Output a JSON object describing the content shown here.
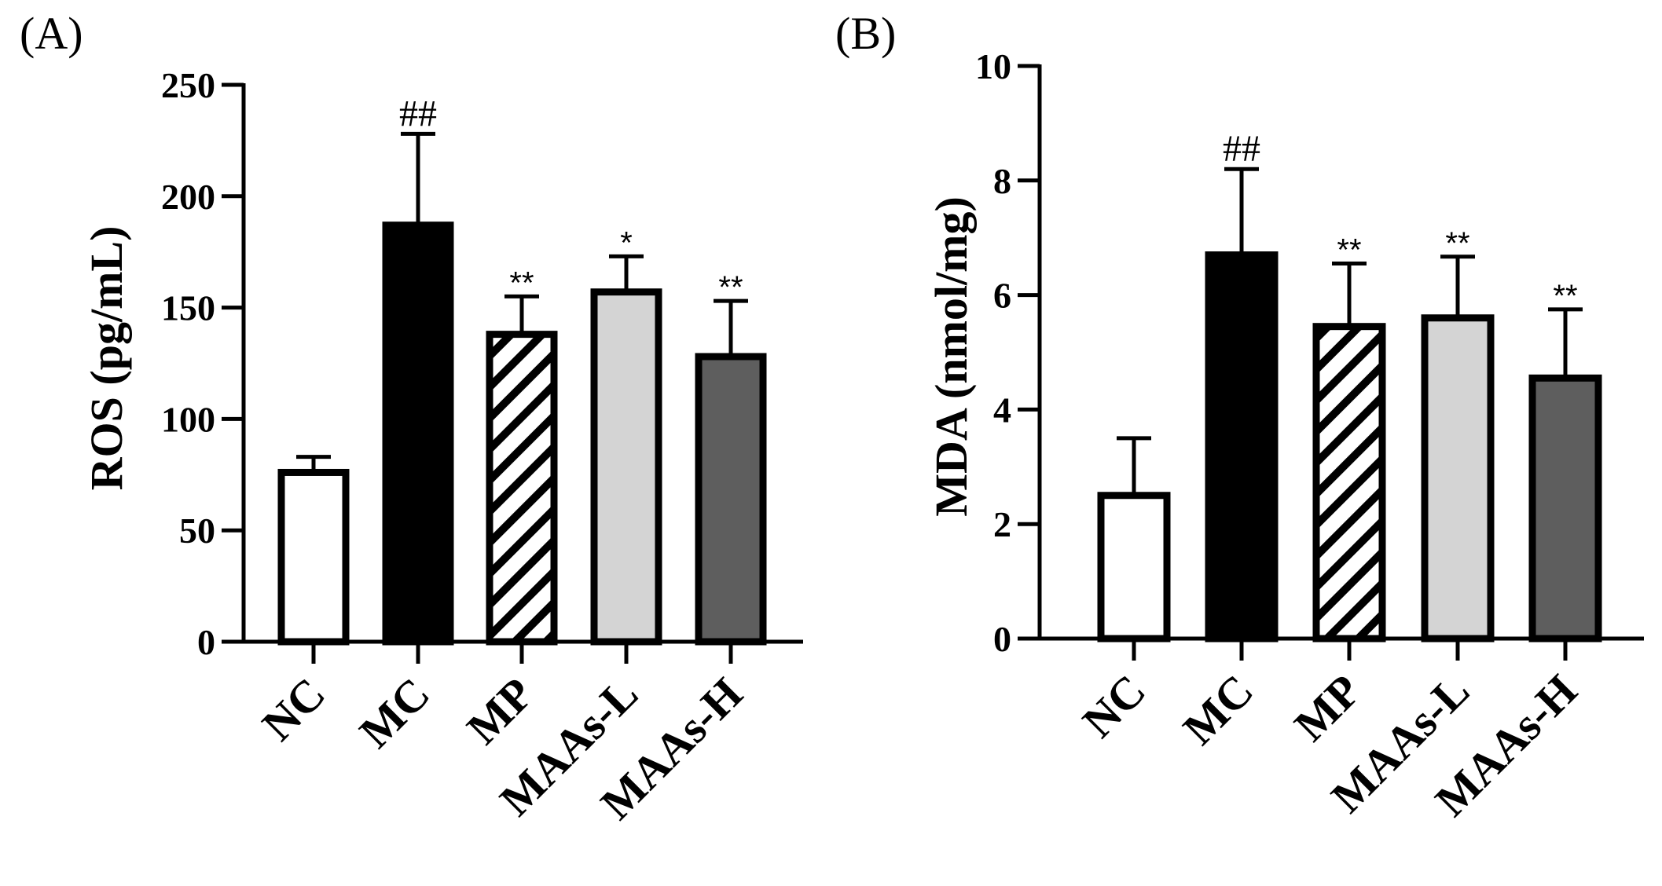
{
  "chart_data": [
    {
      "panel": "(A)",
      "type": "bar",
      "categories": [
        "NC",
        "MC",
        "MP",
        "MAAs-L",
        "MAAs-H"
      ],
      "values": [
        76,
        187,
        138,
        157,
        128
      ],
      "errors": [
        7,
        41,
        17,
        16,
        25
      ],
      "annotations": [
        "",
        "##",
        "**",
        "*",
        "**"
      ],
      "ylabel": "ROS (pg/mL)",
      "ylim": [
        0,
        250
      ],
      "yticks": [
        "0",
        "50",
        "100",
        "150",
        "200",
        "250"
      ],
      "xlabel": "",
      "grid": false
    },
    {
      "panel": "(B)",
      "type": "bar",
      "categories": [
        "NC",
        "MC",
        "MP",
        "MAAs-L",
        "MAAs-H"
      ],
      "values": [
        2.5,
        6.7,
        5.45,
        5.6,
        4.55
      ],
      "errors": [
        1.0,
        1.5,
        1.1,
        1.07,
        1.2
      ],
      "annotations": [
        "",
        "##",
        "**",
        "**",
        "**"
      ],
      "ylabel": "MDA (nmol/mg)",
      "ylim": [
        0,
        10
      ],
      "yticks": [
        "0",
        "2",
        "4",
        "6",
        "8",
        "10"
      ],
      "xlabel": "",
      "grid": false
    }
  ],
  "bar_styles": [
    {
      "fill": "#ffffff",
      "pattern": "none"
    },
    {
      "fill": "#000000",
      "pattern": "none"
    },
    {
      "fill": "#ffffff",
      "pattern": "diagonal-hatch"
    },
    {
      "fill": "#d4d4d4",
      "pattern": "none"
    },
    {
      "fill": "#5e5e5e",
      "pattern": "none"
    }
  ]
}
